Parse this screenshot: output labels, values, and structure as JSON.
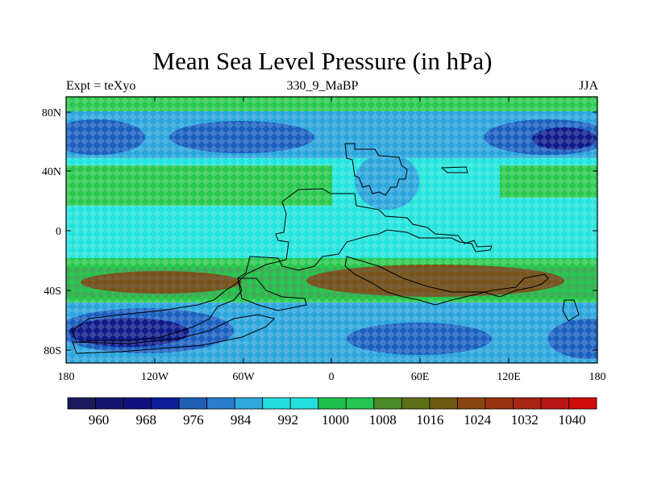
{
  "title": "Mean Sea Level Pressure (in hPa)",
  "left_label": "Expt = teXyo",
  "center_label": "330_9_MaBP",
  "right_label": "JJA",
  "lat_ticks": [
    "80N",
    "40N",
    "0",
    "40S",
    "80S"
  ],
  "lon_ticks": [
    "180",
    "120W",
    "60W",
    "0",
    "60E",
    "120E",
    "180"
  ],
  "colorbar": {
    "labels": [
      "960",
      "968",
      "976",
      "984",
      "992",
      "1000",
      "1008",
      "1016",
      "1024",
      "1032",
      "1040"
    ],
    "colors": [
      "#1a1a5e",
      "#14146e",
      "#10107e",
      "#0c1d98",
      "#1f5fb4",
      "#2b7ccb",
      "#2fa8de",
      "#22dede",
      "#26e0e0",
      "#1ec24b",
      "#26c450",
      "#4a8c28",
      "#5e6e16",
      "#6e5a10",
      "#8a4410",
      "#993212",
      "#a82414",
      "#b81616",
      "#d00c0c"
    ]
  },
  "field_colors": {
    "deep_low": "#0c1a8a",
    "low": "#1a5fc0",
    "mid_low": "#2aa4dc",
    "neutral": "#22e4dc",
    "high": "#28c84e",
    "very_high": "#7a5418"
  }
}
